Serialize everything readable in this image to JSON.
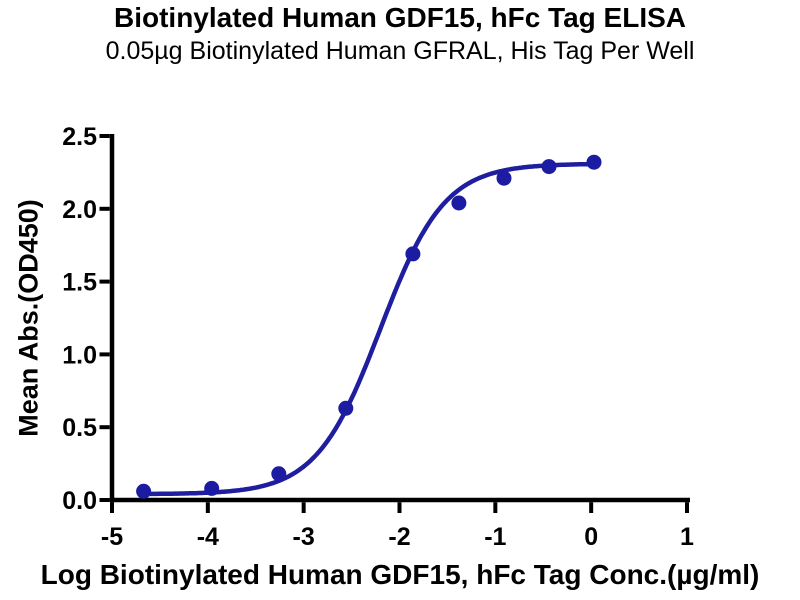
{
  "chart_data": {
    "type": "scatter",
    "title": "Biotinylated Human GDF15, hFc Tag ELISA",
    "subtitle": "0.05µg Biotinylated Human GFRAL, His Tag Per Well",
    "xlabel": "Log Biotinylated Human GDF15, hFc Tag Conc.(µg/ml)",
    "ylabel": "Mean Abs.(OD450)",
    "xlim": [
      -5,
      1
    ],
    "ylim": [
      0,
      2.5
    ],
    "x_tick_values": [
      -5,
      -4,
      -3,
      -2,
      -1,
      0,
      1
    ],
    "x_tick_labels": [
      "-5",
      "-4",
      "-3",
      "-2",
      "-1",
      "0",
      "1"
    ],
    "y_tick_values": [
      0,
      0.5,
      1.0,
      1.5,
      2.0,
      2.5
    ],
    "y_tick_labels": [
      "0.0",
      "0.5",
      "1.0",
      "1.5",
      "2.0",
      "2.5"
    ],
    "grid": false,
    "legend": "none",
    "series": [
      {
        "name": "Biotinylated Human GDF15, hFc Tag",
        "x": [
          -4.67,
          -3.96,
          -3.26,
          -2.56,
          -1.86,
          -1.38,
          -0.91,
          -0.44,
          0.03
        ],
        "y": [
          0.06,
          0.08,
          0.18,
          0.63,
          1.69,
          2.04,
          2.21,
          2.29,
          2.32
        ],
        "marker": "circle",
        "color": "#1c1ca3"
      }
    ],
    "fit_curve": {
      "model": "4PL sigmoidal dose-response",
      "bottom": 0.04,
      "top": 2.31,
      "log_ec50": -2.2,
      "hill_slope": 1.3,
      "x_start": -4.67,
      "x_end": 0.03,
      "color": "#1e1e9e"
    },
    "colors": {
      "axis": "#000000",
      "text": "#000000",
      "background": "#ffffff"
    }
  }
}
